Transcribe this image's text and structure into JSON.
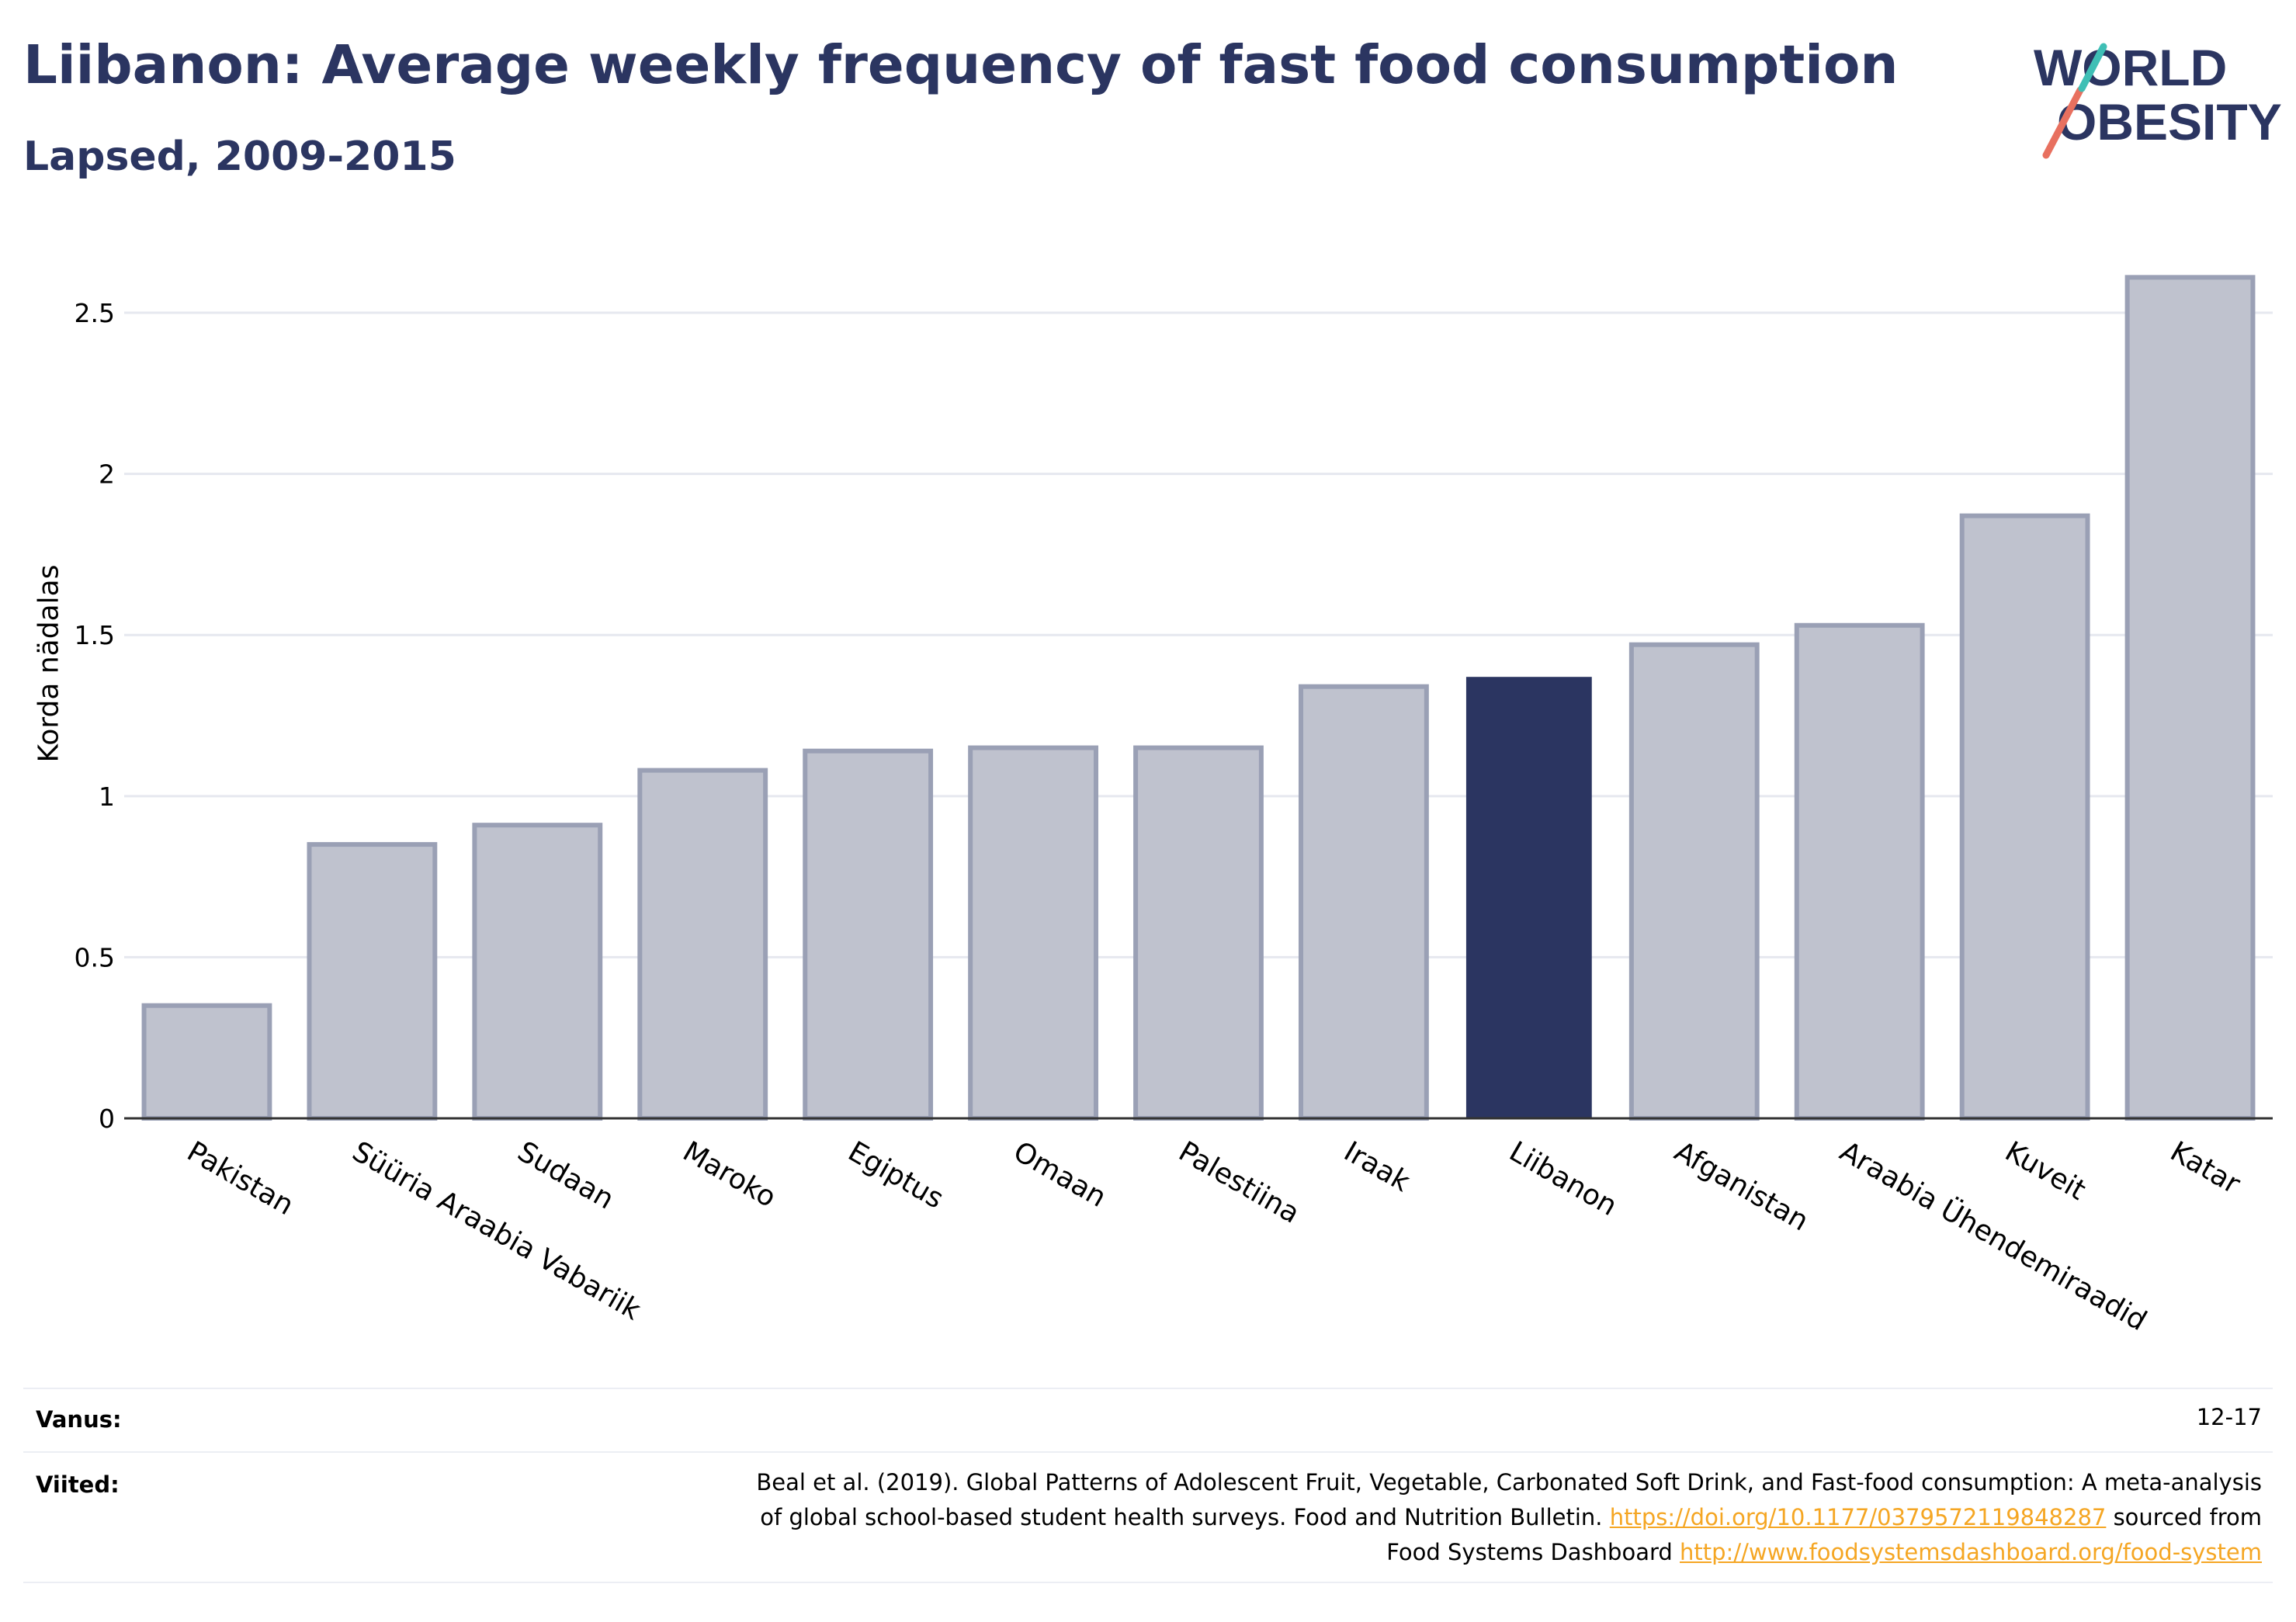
{
  "header": {
    "title": "Liibanon: Average weekly frequency of fast food consumption",
    "subtitle": "Lapsed, 2009-2015"
  },
  "logo": {
    "line1": "WORLD",
    "line2": "OBESITY"
  },
  "chart_data": {
    "type": "bar",
    "title": "Liibanon: Average weekly frequency of fast food consumption",
    "subtitle": "Lapsed, 2009-2015",
    "ylabel": "Korda nädalas",
    "xlabel": "",
    "categories": [
      "Pakistan",
      "Süüria Araabia Vabariik",
      "Sudaan",
      "Maroko",
      "Egiptus",
      "Omaan",
      "Palestiina",
      "Iraak",
      "Liibanon",
      "Afganistan",
      "Araabia Ühendemiraadid",
      "Kuveit",
      "Katar"
    ],
    "values": [
      0.35,
      0.85,
      0.91,
      1.08,
      1.14,
      1.15,
      1.15,
      1.34,
      1.37,
      1.47,
      1.53,
      1.87,
      2.61
    ],
    "highlight": "Liibanon",
    "ylim": [
      0,
      2.7
    ],
    "yticks": [
      0,
      0.5,
      1,
      1.5,
      2,
      2.5
    ],
    "ytick_labels": [
      "0",
      "0.5",
      "1",
      "1.5",
      "2",
      "2.5"
    ],
    "grid": true,
    "colors": {
      "bar": "#bfc2ce",
      "bar_edge": "#9aa0b5",
      "highlight": "#2b3561",
      "grid": "#e6e8ef",
      "axis": "#333333"
    }
  },
  "meta": {
    "age_label": "Vanus:",
    "age_value": "12-17",
    "refs_label": "Viited:",
    "refs_line1": "Beal et al. (2019). Global Patterns of Adolescent Fruit, Vegetable, Carbonated Soft Drink, and Fast-food consumption: A meta-analysis",
    "refs_line2_text": "of global school-based student health surveys. Food and Nutrition Bulletin. ",
    "refs_link1": "https://doi.org/10.1177/0379572119848287",
    "refs_line2_tail": " sourced from",
    "refs_line3_text": "Food Systems Dashboard ",
    "refs_link2": "http://www.foodsystemsdashboard.org/food-system"
  }
}
